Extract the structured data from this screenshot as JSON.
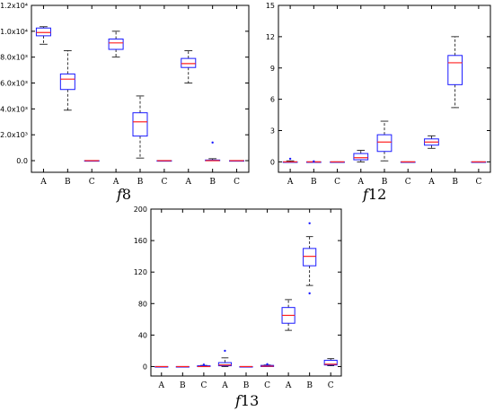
{
  "chart_data": [
    {
      "type": "box",
      "title_prefix": "f",
      "title_number": "8",
      "ylim": [
        -900,
        12000
      ],
      "yticks": [
        0,
        2000,
        4000,
        6000,
        8000,
        10000,
        12000
      ],
      "ytick_labels": [
        "0.0",
        "2.0x10³",
        "4.0x10³",
        "6.0x10³",
        "8.0x10³",
        "1.0x10⁴",
        "1.2x10⁴"
      ],
      "categories": [
        "A",
        "B",
        "C",
        "A",
        "B",
        "C",
        "A",
        "B",
        "C"
      ],
      "boxes": [
        {
          "min": 9000,
          "q1": 9650,
          "median": 9900,
          "q3": 10250,
          "max": 10350,
          "outliers": []
        },
        {
          "min": 3900,
          "q1": 5500,
          "median": 6300,
          "q3": 6700,
          "max": 8500,
          "outliers": []
        },
        {
          "min": 0,
          "q1": 0,
          "median": 0,
          "q3": 0,
          "max": 0,
          "outliers": []
        },
        {
          "min": 8000,
          "q1": 8600,
          "median": 9100,
          "q3": 9400,
          "max": 10000,
          "outliers": []
        },
        {
          "min": 200,
          "q1": 1900,
          "median": 3000,
          "q3": 3700,
          "max": 5000,
          "outliers": []
        },
        {
          "min": 0,
          "q1": 0,
          "median": 0,
          "q3": 0,
          "max": 0,
          "outliers": []
        },
        {
          "min": 6000,
          "q1": 7200,
          "median": 7500,
          "q3": 7900,
          "max": 8500,
          "outliers": []
        },
        {
          "min": 0,
          "q1": 0,
          "median": 0,
          "q3": 50,
          "max": 150,
          "outliers": [
            1400
          ]
        },
        {
          "min": 0,
          "q1": 0,
          "median": 0,
          "q3": 0,
          "max": 0,
          "outliers": []
        }
      ]
    },
    {
      "type": "box",
      "title_prefix": "f",
      "title_number": "12",
      "ylim": [
        -1,
        15
      ],
      "yticks": [
        0,
        3,
        6,
        9,
        12,
        15
      ],
      "ytick_labels": [
        "0",
        "3",
        "6",
        "9",
        "12",
        "15"
      ],
      "categories": [
        "A",
        "B",
        "C",
        "A",
        "B",
        "C",
        "A",
        "B",
        "C"
      ],
      "boxes": [
        {
          "min": 0,
          "q1": 0,
          "median": 0,
          "q3": 0,
          "max": 0.1,
          "outliers": [
            0.3
          ]
        },
        {
          "min": 0,
          "q1": 0,
          "median": 0,
          "q3": 0,
          "max": 0,
          "outliers": [
            0.05
          ]
        },
        {
          "min": 0,
          "q1": 0,
          "median": 0,
          "q3": 0,
          "max": 0,
          "outliers": []
        },
        {
          "min": 0,
          "q1": 0.2,
          "median": 0.4,
          "q3": 0.8,
          "max": 1.1,
          "outliers": []
        },
        {
          "min": 0.1,
          "q1": 1.0,
          "median": 1.9,
          "q3": 2.6,
          "max": 3.9,
          "outliers": []
        },
        {
          "min": 0,
          "q1": 0,
          "median": 0,
          "q3": 0,
          "max": 0,
          "outliers": []
        },
        {
          "min": 1.3,
          "q1": 1.6,
          "median": 1.9,
          "q3": 2.2,
          "max": 2.5,
          "outliers": []
        },
        {
          "min": 5.2,
          "q1": 7.4,
          "median": 9.5,
          "q3": 10.2,
          "max": 12.0,
          "outliers": []
        },
        {
          "min": 0,
          "q1": 0,
          "median": 0,
          "q3": 0,
          "max": 0,
          "outliers": []
        }
      ]
    },
    {
      "type": "box",
      "title_prefix": "f",
      "title_number": "13",
      "ylim": [
        -12,
        200
      ],
      "yticks": [
        0,
        40,
        80,
        120,
        160,
        200
      ],
      "ytick_labels": [
        "0",
        "40",
        "80",
        "120",
        "160",
        "200"
      ],
      "categories": [
        "A",
        "B",
        "C",
        "A",
        "B",
        "C",
        "A",
        "B",
        "C"
      ],
      "boxes": [
        {
          "min": 0,
          "q1": 0,
          "median": 0,
          "q3": 0,
          "max": 0,
          "outliers": []
        },
        {
          "min": 0,
          "q1": 0,
          "median": 0,
          "q3": 0,
          "max": 0,
          "outliers": []
        },
        {
          "min": 0,
          "q1": 0,
          "median": 0,
          "q3": 1,
          "max": 1.5,
          "outliers": [
            2.5
          ]
        },
        {
          "min": 0,
          "q1": 1,
          "median": 2,
          "q3": 5,
          "max": 11,
          "outliers": [
            20
          ]
        },
        {
          "min": 0,
          "q1": 0,
          "median": 0,
          "q3": 0,
          "max": 0,
          "outliers": []
        },
        {
          "min": 0,
          "q1": 0,
          "median": 0.5,
          "q3": 1.5,
          "max": 2,
          "outliers": [
            3
          ]
        },
        {
          "min": 46,
          "q1": 55,
          "median": 65,
          "q3": 75,
          "max": 85,
          "outliers": []
        },
        {
          "min": 103,
          "q1": 128,
          "median": 140,
          "q3": 150,
          "max": 165,
          "outliers": [
            93,
            182
          ]
        },
        {
          "min": 1,
          "q1": 2,
          "median": 3,
          "q3": 8,
          "max": 10,
          "outliers": []
        }
      ]
    }
  ]
}
